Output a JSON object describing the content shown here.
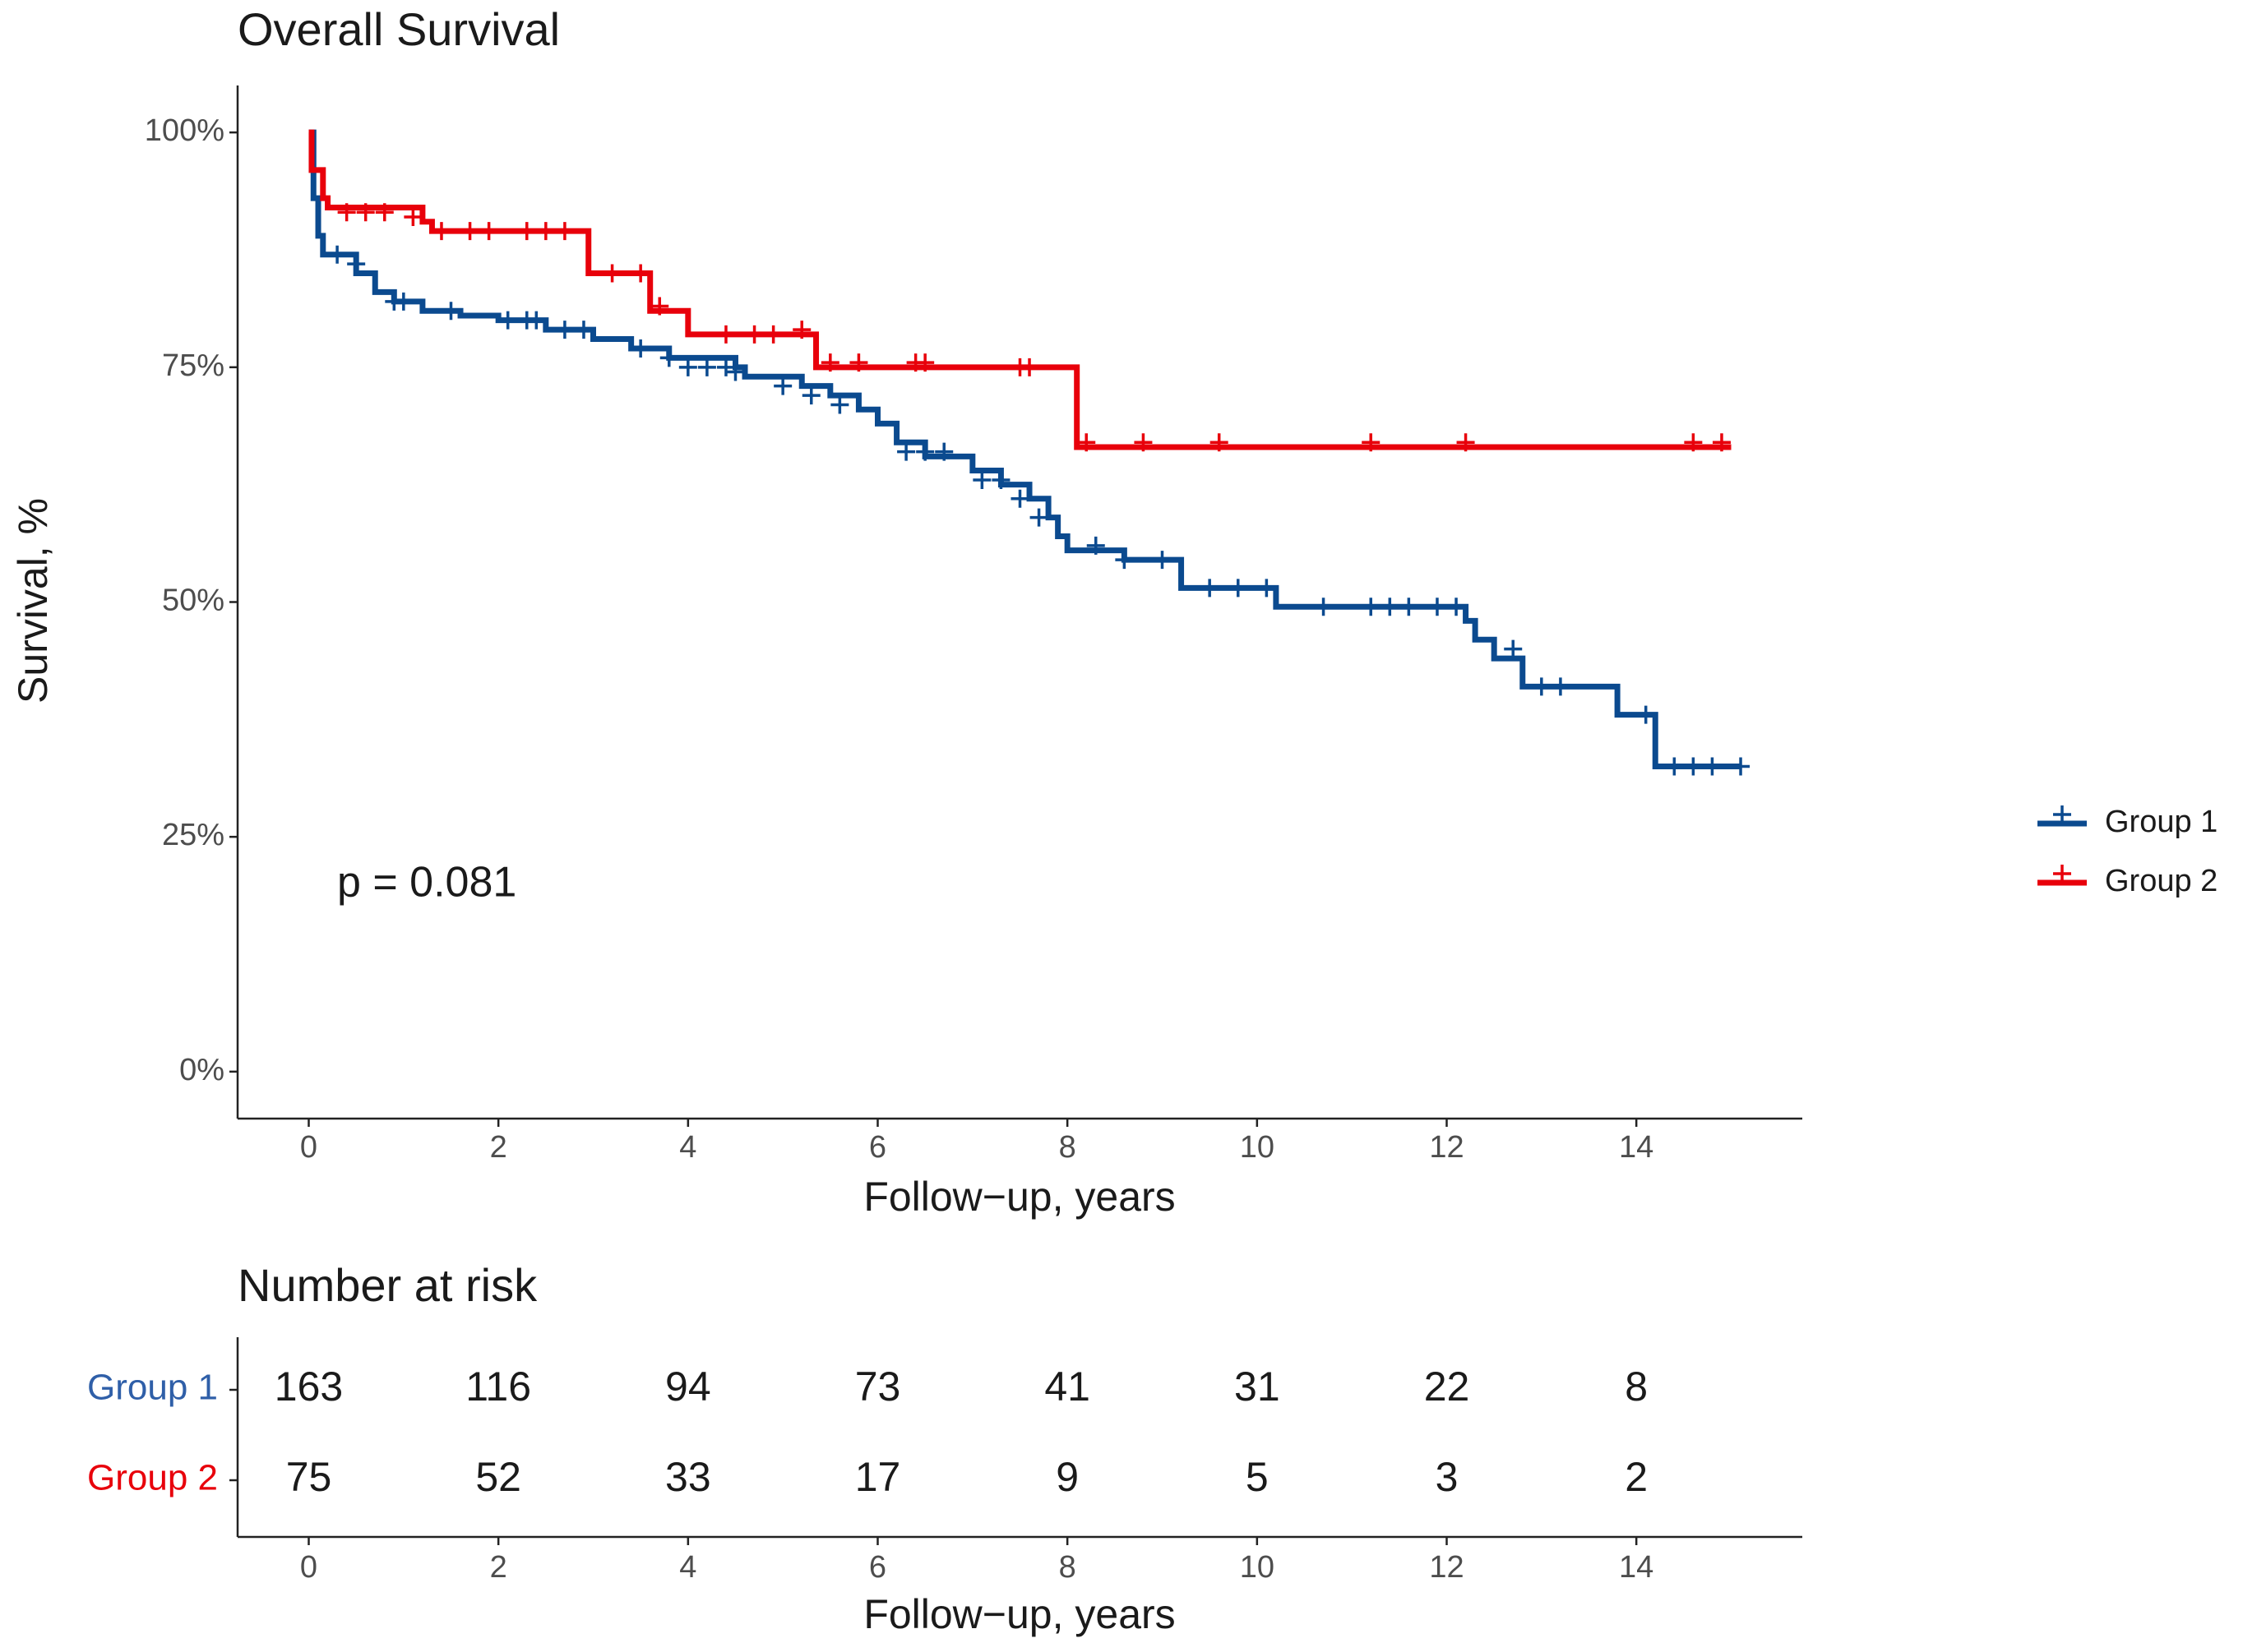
{
  "chart_data": [
    {
      "type": "step",
      "title": "Overall Survival",
      "xlabel": "Follow−up, years",
      "ylabel": "Survival, %",
      "xlim": [
        -0.75,
        15.75
      ],
      "xticks": [
        0,
        2,
        4,
        6,
        8,
        10,
        12,
        14
      ],
      "ylim": [
        -5,
        105
      ],
      "yticks": [
        {
          "value": 0,
          "label": "0%"
        },
        {
          "value": 25,
          "label": "25%"
        },
        {
          "value": 50,
          "label": "50%"
        },
        {
          "value": 75,
          "label": "75%"
        },
        {
          "value": 100,
          "label": "100%"
        }
      ],
      "legend": "right",
      "annotations": [
        "p = 0.081"
      ],
      "series": [
        {
          "name": "Group 1",
          "color": "#0b4a8f",
          "x": [
            0,
            0.05,
            0.1,
            0.15,
            0.5,
            0.7,
            0.9,
            1.2,
            1.6,
            2.0,
            2.5,
            3.0,
            3.4,
            3.8,
            4.5,
            4.6,
            5.2,
            5.5,
            5.8,
            6.0,
            6.2,
            6.5,
            7.0,
            7.3,
            7.6,
            7.8,
            7.9,
            8.0,
            8.6,
            9.2,
            10.2,
            12.2,
            12.3,
            12.5,
            12.8,
            13.8,
            14.2,
            15.1
          ],
          "values": [
            100,
            93,
            89,
            87,
            85,
            83,
            82,
            81,
            80.5,
            80,
            79,
            78,
            77,
            76,
            75,
            74,
            73,
            72,
            70.5,
            69,
            67,
            65.5,
            64,
            62.5,
            61,
            59,
            57,
            55.5,
            54.5,
            51.5,
            49.5,
            48,
            46,
            44,
            41,
            38,
            32.5,
            32.5
          ],
          "censor_x": [
            0.3,
            0.5,
            0.9,
            1.0,
            1.5,
            2.1,
            2.3,
            2.4,
            2.7,
            2.9,
            3.5,
            3.8,
            4.0,
            4.2,
            4.4,
            4.5,
            5.0,
            5.3,
            5.6,
            6.3,
            6.5,
            6.7,
            7.1,
            7.3,
            7.5,
            7.7,
            8.3,
            8.6,
            9.0,
            9.5,
            9.8,
            10.1,
            10.7,
            11.2,
            11.4,
            11.6,
            11.9,
            12.1,
            12.7,
            13.0,
            13.2,
            14.1,
            14.4,
            14.6,
            14.8,
            15.1
          ],
          "censor_y": [
            87,
            86,
            82,
            82,
            81,
            80,
            80,
            80,
            79,
            79,
            77,
            76,
            75,
            75,
            75,
            74.5,
            73,
            72,
            71,
            66,
            66,
            66,
            63,
            63,
            61,
            59,
            56,
            54.5,
            54.5,
            51.5,
            51.5,
            51.5,
            49.5,
            49.5,
            49.5,
            49.5,
            49.5,
            49.5,
            45,
            41,
            41,
            38,
            32.5,
            32.5,
            32.5,
            32.5
          ]
        },
        {
          "name": "Group 2",
          "color": "#e8000b",
          "x": [
            0,
            0.03,
            0.15,
            0.2,
            1.2,
            1.3,
            2.95,
            3.6,
            4.0,
            5.35,
            8.1,
            15.0
          ],
          "values": [
            100,
            96,
            93,
            92,
            90.5,
            89.5,
            85,
            81,
            78.5,
            75,
            66.5,
            66.5
          ],
          "censor_x": [
            0.4,
            0.6,
            0.8,
            1.1,
            1.4,
            1.7,
            1.9,
            2.3,
            2.5,
            2.7,
            3.2,
            3.5,
            3.7,
            4.4,
            4.7,
            4.9,
            5.2,
            5.5,
            5.8,
            6.4,
            6.5,
            7.5,
            7.6,
            8.2,
            8.8,
            9.6,
            11.2,
            12.2,
            14.6,
            14.9
          ],
          "censor_y": [
            91.5,
            91.5,
            91.5,
            91,
            89.5,
            89.5,
            89.5,
            89.5,
            89.5,
            89.5,
            85,
            85,
            81.5,
            78.5,
            78.5,
            78.5,
            79,
            75.5,
            75.5,
            75.5,
            75.5,
            75,
            75,
            67,
            67,
            67,
            67,
            67,
            67,
            67
          ]
        }
      ]
    },
    {
      "type": "risk_table",
      "title": "Number at risk",
      "xlabel": "Follow−up, years",
      "xlim": [
        -0.75,
        15.75
      ],
      "xticks": [
        0,
        2,
        4,
        6,
        8,
        10,
        12,
        14
      ],
      "x": [
        0,
        2,
        4,
        6,
        8,
        10,
        12,
        14
      ],
      "series": [
        {
          "name": "Group 1",
          "color": "#2f5fa8",
          "values": [
            163,
            116,
            94,
            73,
            41,
            31,
            22,
            8
          ]
        },
        {
          "name": "Group 2",
          "color": "#e8000b",
          "values": [
            75,
            52,
            33,
            17,
            9,
            5,
            3,
            2
          ]
        }
      ]
    }
  ]
}
